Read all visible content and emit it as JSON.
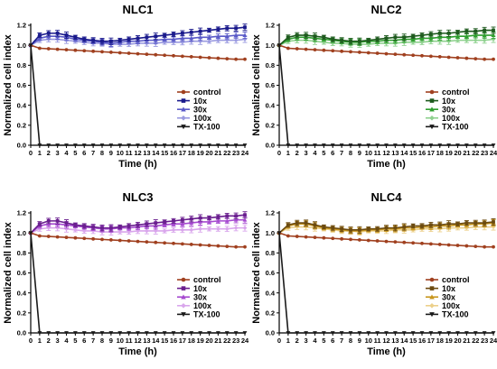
{
  "figure": {
    "x_axis": {
      "label": "Time (h)",
      "lim": [
        0,
        24
      ],
      "ticks": [
        0,
        1,
        2,
        3,
        4,
        5,
        6,
        7,
        8,
        9,
        10,
        11,
        12,
        13,
        14,
        15,
        16,
        17,
        18,
        19,
        20,
        21,
        22,
        23,
        24
      ]
    },
    "y_axis": {
      "label": "Normalized cell index",
      "lim": [
        0,
        1.2
      ],
      "ticks": [
        "0.0",
        "0.2",
        "0.4",
        "0.6",
        "0.8",
        "1.0",
        "1.2"
      ]
    }
  },
  "chart_data": [
    {
      "type": "line",
      "title": "NLC1",
      "xlabel": "Time (h)",
      "ylabel": "Normalized cell index",
      "xlim": [
        0,
        24
      ],
      "ylim": [
        0,
        1.2
      ],
      "legend_position": "bottom-right",
      "x": [
        0,
        1,
        2,
        3,
        4,
        5,
        6,
        7,
        8,
        9,
        10,
        11,
        12,
        13,
        14,
        15,
        16,
        17,
        18,
        19,
        20,
        21,
        22,
        23,
        24
      ],
      "series": [
        {
          "name": "control",
          "color": "#a0401f",
          "values": [
            1.0,
            0.97,
            0.965,
            0.96,
            0.955,
            0.95,
            0.945,
            0.94,
            0.935,
            0.93,
            0.925,
            0.92,
            0.915,
            0.91,
            0.905,
            0.9,
            0.895,
            0.89,
            0.885,
            0.88,
            0.875,
            0.87,
            0.865,
            0.86,
            0.86
          ]
        },
        {
          "name": "10x",
          "color": "#1a1a8c",
          "values": [
            1.0,
            1.1,
            1.12,
            1.12,
            1.1,
            1.08,
            1.06,
            1.05,
            1.04,
            1.04,
            1.05,
            1.06,
            1.07,
            1.08,
            1.09,
            1.1,
            1.11,
            1.12,
            1.13,
            1.14,
            1.15,
            1.16,
            1.17,
            1.17,
            1.18
          ]
        },
        {
          "name": "30x",
          "color": "#5a5ac8",
          "values": [
            1.0,
            1.07,
            1.09,
            1.09,
            1.08,
            1.06,
            1.05,
            1.04,
            1.03,
            1.02,
            1.03,
            1.04,
            1.04,
            1.05,
            1.05,
            1.06,
            1.06,
            1.07,
            1.07,
            1.08,
            1.08,
            1.09,
            1.09,
            1.1,
            1.1
          ]
        },
        {
          "name": "100x",
          "color": "#9a9ae0",
          "values": [
            1.0,
            1.05,
            1.06,
            1.06,
            1.05,
            1.04,
            1.03,
            1.02,
            1.02,
            1.01,
            1.01,
            1.01,
            1.02,
            1.02,
            1.02,
            1.03,
            1.03,
            1.03,
            1.04,
            1.04,
            1.04,
            1.05,
            1.05,
            1.05,
            1.06
          ]
        },
        {
          "name": "TX-100",
          "color": "#1a1a1a",
          "values": [
            1.0,
            0.0,
            0.0,
            0.0,
            0.0,
            0.0,
            0.0,
            0.0,
            0.0,
            0.0,
            0.0,
            0.0,
            0.0,
            0.0,
            0.0,
            0.0,
            0.0,
            0.0,
            0.0,
            0.0,
            0.0,
            0.0,
            0.0,
            0.0,
            0.0
          ]
        }
      ]
    },
    {
      "type": "line",
      "title": "NLC2",
      "xlabel": "Time (h)",
      "ylabel": "Normalized cell index",
      "xlim": [
        0,
        24
      ],
      "ylim": [
        0,
        1.2
      ],
      "legend_position": "bottom-right",
      "x": [
        0,
        1,
        2,
        3,
        4,
        5,
        6,
        7,
        8,
        9,
        10,
        11,
        12,
        13,
        14,
        15,
        16,
        17,
        18,
        19,
        20,
        21,
        22,
        23,
        24
      ],
      "series": [
        {
          "name": "control",
          "color": "#a0401f",
          "values": [
            1.0,
            0.97,
            0.965,
            0.96,
            0.955,
            0.95,
            0.945,
            0.94,
            0.935,
            0.93,
            0.925,
            0.92,
            0.915,
            0.91,
            0.905,
            0.9,
            0.895,
            0.89,
            0.885,
            0.88,
            0.875,
            0.87,
            0.865,
            0.86,
            0.86
          ]
        },
        {
          "name": "10x",
          "color": "#1e5a1e",
          "values": [
            1.0,
            1.08,
            1.1,
            1.1,
            1.09,
            1.08,
            1.06,
            1.05,
            1.04,
            1.04,
            1.05,
            1.06,
            1.07,
            1.08,
            1.08,
            1.09,
            1.1,
            1.11,
            1.12,
            1.12,
            1.13,
            1.14,
            1.14,
            1.15,
            1.15
          ]
        },
        {
          "name": "30x",
          "color": "#2e9e2e",
          "values": [
            1.0,
            1.06,
            1.08,
            1.08,
            1.07,
            1.06,
            1.05,
            1.04,
            1.03,
            1.03,
            1.04,
            1.04,
            1.05,
            1.05,
            1.06,
            1.06,
            1.07,
            1.07,
            1.08,
            1.08,
            1.09,
            1.09,
            1.1,
            1.1,
            1.1
          ]
        },
        {
          "name": "100x",
          "color": "#8fd18f",
          "values": [
            1.0,
            1.04,
            1.05,
            1.05,
            1.04,
            1.03,
            1.02,
            1.02,
            1.01,
            1.01,
            1.01,
            1.02,
            1.02,
            1.02,
            1.03,
            1.03,
            1.03,
            1.04,
            1.04,
            1.04,
            1.05,
            1.05,
            1.05,
            1.05,
            1.06
          ]
        },
        {
          "name": "TX-100",
          "color": "#1a1a1a",
          "values": [
            1.0,
            0.0,
            0.0,
            0.0,
            0.0,
            0.0,
            0.0,
            0.0,
            0.0,
            0.0,
            0.0,
            0.0,
            0.0,
            0.0,
            0.0,
            0.0,
            0.0,
            0.0,
            0.0,
            0.0,
            0.0,
            0.0,
            0.0,
            0.0,
            0.0
          ]
        }
      ]
    },
    {
      "type": "line",
      "title": "NLC3",
      "xlabel": "Time (h)",
      "ylabel": "Normalized cell index",
      "xlim": [
        0,
        24
      ],
      "ylim": [
        0,
        1.2
      ],
      "legend_position": "bottom-right",
      "x": [
        0,
        1,
        2,
        3,
        4,
        5,
        6,
        7,
        8,
        9,
        10,
        11,
        12,
        13,
        14,
        15,
        16,
        17,
        18,
        19,
        20,
        21,
        22,
        23,
        24
      ],
      "series": [
        {
          "name": "control",
          "color": "#a0401f",
          "values": [
            1.0,
            0.97,
            0.965,
            0.96,
            0.955,
            0.95,
            0.945,
            0.94,
            0.935,
            0.93,
            0.925,
            0.92,
            0.915,
            0.91,
            0.905,
            0.9,
            0.895,
            0.89,
            0.885,
            0.88,
            0.875,
            0.87,
            0.865,
            0.86,
            0.86
          ]
        },
        {
          "name": "10x",
          "color": "#6a1f8f",
          "values": [
            1.0,
            1.09,
            1.12,
            1.12,
            1.1,
            1.08,
            1.07,
            1.06,
            1.05,
            1.05,
            1.06,
            1.07,
            1.08,
            1.09,
            1.1,
            1.11,
            1.12,
            1.13,
            1.14,
            1.15,
            1.15,
            1.16,
            1.17,
            1.17,
            1.18
          ]
        },
        {
          "name": "30x",
          "color": "#a64ad0",
          "values": [
            1.0,
            1.07,
            1.09,
            1.09,
            1.08,
            1.07,
            1.06,
            1.05,
            1.04,
            1.04,
            1.05,
            1.05,
            1.06,
            1.07,
            1.07,
            1.08,
            1.09,
            1.09,
            1.1,
            1.11,
            1.11,
            1.12,
            1.12,
            1.13,
            1.13
          ]
        },
        {
          "name": "100x",
          "color": "#d9a6ec",
          "values": [
            1.0,
            1.04,
            1.05,
            1.05,
            1.04,
            1.03,
            1.02,
            1.02,
            1.01,
            1.01,
            1.01,
            1.01,
            1.02,
            1.02,
            1.02,
            1.02,
            1.03,
            1.03,
            1.03,
            1.04,
            1.04,
            1.04,
            1.04,
            1.05,
            1.05
          ]
        },
        {
          "name": "TX-100",
          "color": "#1a1a1a",
          "values": [
            1.0,
            0.0,
            0.0,
            0.0,
            0.0,
            0.0,
            0.0,
            0.0,
            0.0,
            0.0,
            0.0,
            0.0,
            0.0,
            0.0,
            0.0,
            0.0,
            0.0,
            0.0,
            0.0,
            0.0,
            0.0,
            0.0,
            0.0,
            0.0,
            0.0
          ]
        }
      ]
    },
    {
      "type": "line",
      "title": "NLC4",
      "xlabel": "Time (h)",
      "ylabel": "Normalized cell index",
      "xlim": [
        0,
        24
      ],
      "ylim": [
        0,
        1.2
      ],
      "legend_position": "bottom-right",
      "x": [
        0,
        1,
        2,
        3,
        4,
        5,
        6,
        7,
        8,
        9,
        10,
        11,
        12,
        13,
        14,
        15,
        16,
        17,
        18,
        19,
        20,
        21,
        22,
        23,
        24
      ],
      "series": [
        {
          "name": "control",
          "color": "#a0401f",
          "values": [
            1.0,
            0.97,
            0.965,
            0.96,
            0.955,
            0.95,
            0.945,
            0.94,
            0.935,
            0.93,
            0.925,
            0.92,
            0.915,
            0.91,
            0.905,
            0.9,
            0.895,
            0.89,
            0.885,
            0.88,
            0.875,
            0.87,
            0.865,
            0.86,
            0.86
          ]
        },
        {
          "name": "10x",
          "color": "#6b4a10",
          "values": [
            1.0,
            1.08,
            1.1,
            1.1,
            1.08,
            1.06,
            1.05,
            1.04,
            1.03,
            1.03,
            1.04,
            1.04,
            1.05,
            1.05,
            1.06,
            1.07,
            1.07,
            1.08,
            1.08,
            1.09,
            1.09,
            1.1,
            1.1,
            1.1,
            1.11
          ]
        },
        {
          "name": "30x",
          "color": "#c8961e",
          "values": [
            1.0,
            1.07,
            1.09,
            1.09,
            1.07,
            1.05,
            1.04,
            1.03,
            1.02,
            1.02,
            1.03,
            1.03,
            1.04,
            1.04,
            1.05,
            1.05,
            1.06,
            1.06,
            1.07,
            1.07,
            1.08,
            1.08,
            1.09,
            1.09,
            1.1
          ]
        },
        {
          "name": "100x",
          "color": "#ecd08a",
          "values": [
            1.0,
            1.05,
            1.06,
            1.06,
            1.05,
            1.04,
            1.03,
            1.02,
            1.02,
            1.01,
            1.02,
            1.02,
            1.02,
            1.03,
            1.03,
            1.03,
            1.04,
            1.04,
            1.04,
            1.05,
            1.05,
            1.05,
            1.06,
            1.06,
            1.06
          ]
        },
        {
          "name": "TX-100",
          "color": "#1a1a1a",
          "values": [
            1.0,
            0.0,
            0.0,
            0.0,
            0.0,
            0.0,
            0.0,
            0.0,
            0.0,
            0.0,
            0.0,
            0.0,
            0.0,
            0.0,
            0.0,
            0.0,
            0.0,
            0.0,
            0.0,
            0.0,
            0.0,
            0.0,
            0.0,
            0.0,
            0.0
          ]
        }
      ]
    }
  ]
}
